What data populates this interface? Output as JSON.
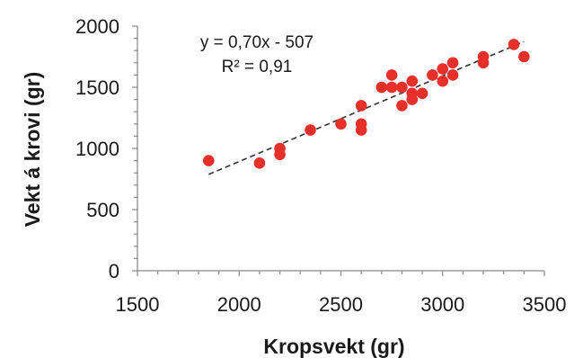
{
  "chart_data": {
    "type": "scatter",
    "xlabel": "Kropsvekt (gr)",
    "ylabel": "Vekt á krovi (gr)",
    "xlim": [
      1500,
      3500
    ],
    "ylim": [
      0,
      2000
    ],
    "x_ticks": [
      "1500",
      "2000",
      "2500",
      "3000",
      "3500"
    ],
    "y_ticks": [
      "0",
      "500",
      "1000",
      "1500",
      "2000"
    ],
    "equation": "y = 0,70x - 507",
    "r_squared": "R² = 0,91",
    "trendline": {
      "slope": 0.7,
      "intercept": -507,
      "x_range": [
        1850,
        3400
      ]
    },
    "marker_color": "#e8302a",
    "trendline_color": "#333333",
    "x": [
      1850,
      2100,
      2200,
      2200,
      2350,
      2500,
      2600,
      2600,
      2600,
      2700,
      2750,
      2750,
      2800,
      2800,
      2850,
      2850,
      2850,
      2900,
      2950,
      3000,
      3000,
      3050,
      3050,
      3200,
      3200,
      3350,
      3400
    ],
    "y": [
      900,
      880,
      950,
      1000,
      1150,
      1200,
      1150,
      1200,
      1350,
      1500,
      1500,
      1600,
      1350,
      1500,
      1400,
      1450,
      1550,
      1450,
      1600,
      1550,
      1650,
      1600,
      1700,
      1700,
      1750,
      1850,
      1750
    ]
  }
}
